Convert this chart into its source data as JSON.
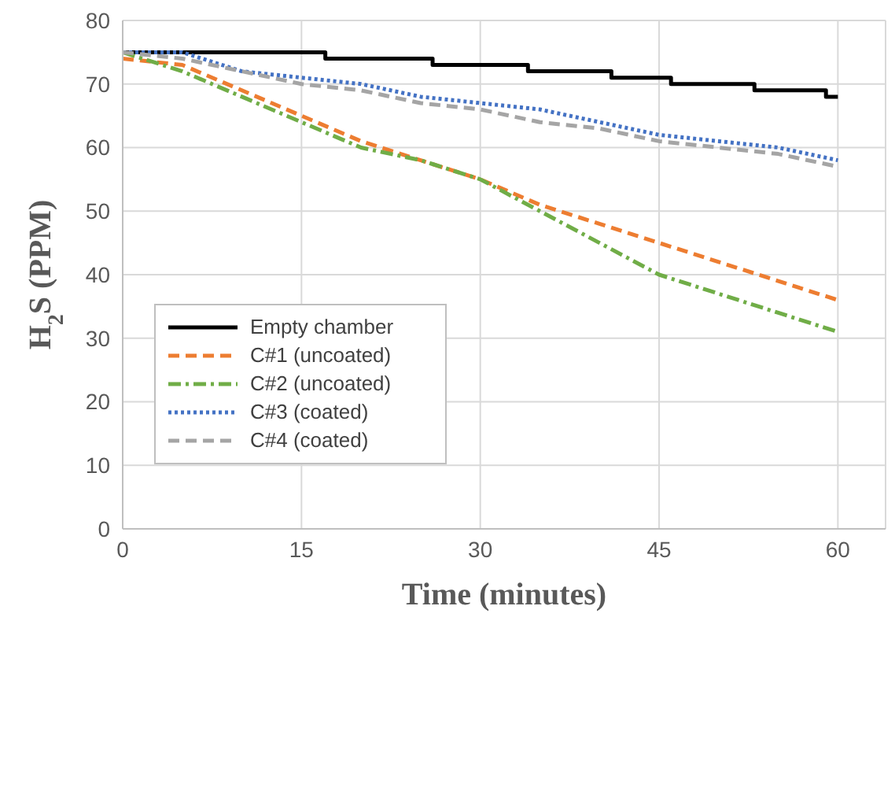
{
  "chart_data": {
    "type": "line",
    "xlabel": "Time (minutes)",
    "ylabel": "H$_{2}$S (PPM)",
    "xlim": [
      0,
      64
    ],
    "xticks": [
      0,
      15,
      30,
      45,
      60
    ],
    "ylim": [
      0,
      80
    ],
    "yticks": [
      0,
      10,
      20,
      30,
      40,
      50,
      60,
      70,
      80
    ],
    "grid": true,
    "legend": "left",
    "marker": "none",
    "series": [
      {
        "name": "Empty chamber",
        "type": "step",
        "color": "#000000",
        "line_style": "solid",
        "x": [
          0,
          17,
          26,
          34,
          41,
          46,
          53,
          59,
          60
        ],
        "values": [
          75,
          74,
          73,
          72,
          71,
          70,
          69,
          68,
          68
        ]
      },
      {
        "name": "C#1 (uncoated)",
        "color": "#ed7d31",
        "line_style": "dashed",
        "x": [
          0,
          5,
          10,
          15,
          20,
          25,
          30,
          35,
          40,
          45,
          50,
          55,
          60
        ],
        "values": [
          74,
          73,
          69,
          65,
          61,
          58,
          55,
          51,
          48,
          45,
          42,
          39,
          36
        ]
      },
      {
        "name": "C#2 (uncoated)",
        "color": "#70ad47",
        "line_style": "dashdot",
        "x": [
          0,
          5,
          10,
          15,
          20,
          25,
          30,
          35,
          40,
          45,
          50,
          55,
          60
        ],
        "values": [
          75,
          72,
          68,
          64,
          60,
          58,
          55,
          50,
          45,
          40,
          37,
          34,
          31
        ]
      },
      {
        "name": "C#3 (coated)",
        "color": "#4472c4",
        "line_style": "dotted",
        "x": [
          0,
          5,
          10,
          15,
          20,
          25,
          30,
          35,
          40,
          45,
          50,
          55,
          60
        ],
        "values": [
          75,
          75,
          72,
          71,
          70,
          68,
          67,
          66,
          64,
          62,
          61,
          60,
          58
        ]
      },
      {
        "name": "C#4 (coated)",
        "color": "#a5a5a5",
        "line_style": "dashed",
        "x": [
          0,
          5,
          10,
          15,
          20,
          25,
          30,
          35,
          40,
          45,
          50,
          55,
          60
        ],
        "values": [
          75,
          74,
          72,
          70,
          69,
          67,
          66,
          64,
          63,
          61,
          60,
          59,
          57
        ]
      }
    ]
  }
}
